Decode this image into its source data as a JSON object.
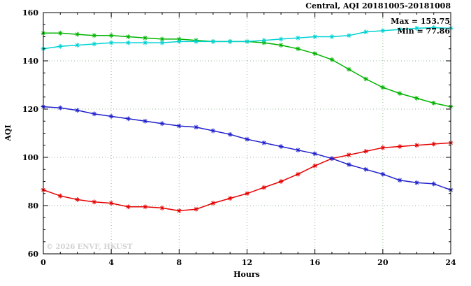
{
  "chart_data": {
    "type": "line",
    "title": "Central, AQI 20181005-20181008",
    "xlabel": "Hours",
    "ylabel": "AQI",
    "xlim": [
      0,
      24
    ],
    "ylim": [
      60,
      160
    ],
    "xticks": [
      0,
      4,
      8,
      12,
      16,
      20,
      24
    ],
    "yticks": [
      60,
      80,
      100,
      120,
      140,
      160
    ],
    "x_minor_step": 1,
    "y_minor_step": 5,
    "grid": true,
    "x": [
      0,
      1,
      2,
      3,
      4,
      5,
      6,
      7,
      8,
      9,
      10,
      11,
      12,
      13,
      14,
      15,
      16,
      17,
      18,
      19,
      20,
      21,
      22,
      23,
      24
    ],
    "series": [
      {
        "name": "red",
        "color": "#e60000",
        "values": [
          86.5,
          84,
          82.5,
          81.5,
          81,
          79.5,
          79.5,
          79,
          77.86,
          78.5,
          81,
          83,
          85,
          87.5,
          90,
          93,
          96.5,
          99.5,
          101,
          102.5,
          104,
          104.5,
          105,
          105.5,
          106
        ]
      },
      {
        "name": "green",
        "color": "#00b400",
        "values": [
          151.5,
          151.5,
          151,
          150.5,
          150.5,
          150,
          149.5,
          149,
          149,
          148.5,
          148,
          148,
          148,
          147.5,
          146.5,
          145,
          143,
          140.5,
          136.5,
          132.5,
          129,
          126.5,
          124.5,
          122.5,
          121
        ]
      },
      {
        "name": "blue",
        "color": "#2020cc",
        "values": [
          121,
          120.5,
          119.5,
          118,
          117,
          116,
          115,
          114,
          113,
          112.5,
          111,
          109.5,
          107.5,
          106,
          104.5,
          103,
          101.5,
          99.5,
          97,
          95,
          93,
          90.5,
          89.5,
          89,
          86.5
        ]
      },
      {
        "name": "cyan",
        "color": "#00d2d2",
        "values": [
          145,
          146,
          146.5,
          147,
          147.5,
          147.5,
          147.5,
          147.5,
          148,
          148,
          148,
          148,
          148,
          148.5,
          149,
          149.5,
          150,
          150,
          150.5,
          152,
          152.5,
          153,
          153.5,
          153.75,
          153.5
        ]
      }
    ],
    "legend": {
      "position": "top-right",
      "entries": [
        "Max = 153.75",
        "Min = 77.86"
      ]
    },
    "max": 153.75,
    "min": 77.86,
    "watermark": "© 2026 ENVF, HKUST"
  }
}
